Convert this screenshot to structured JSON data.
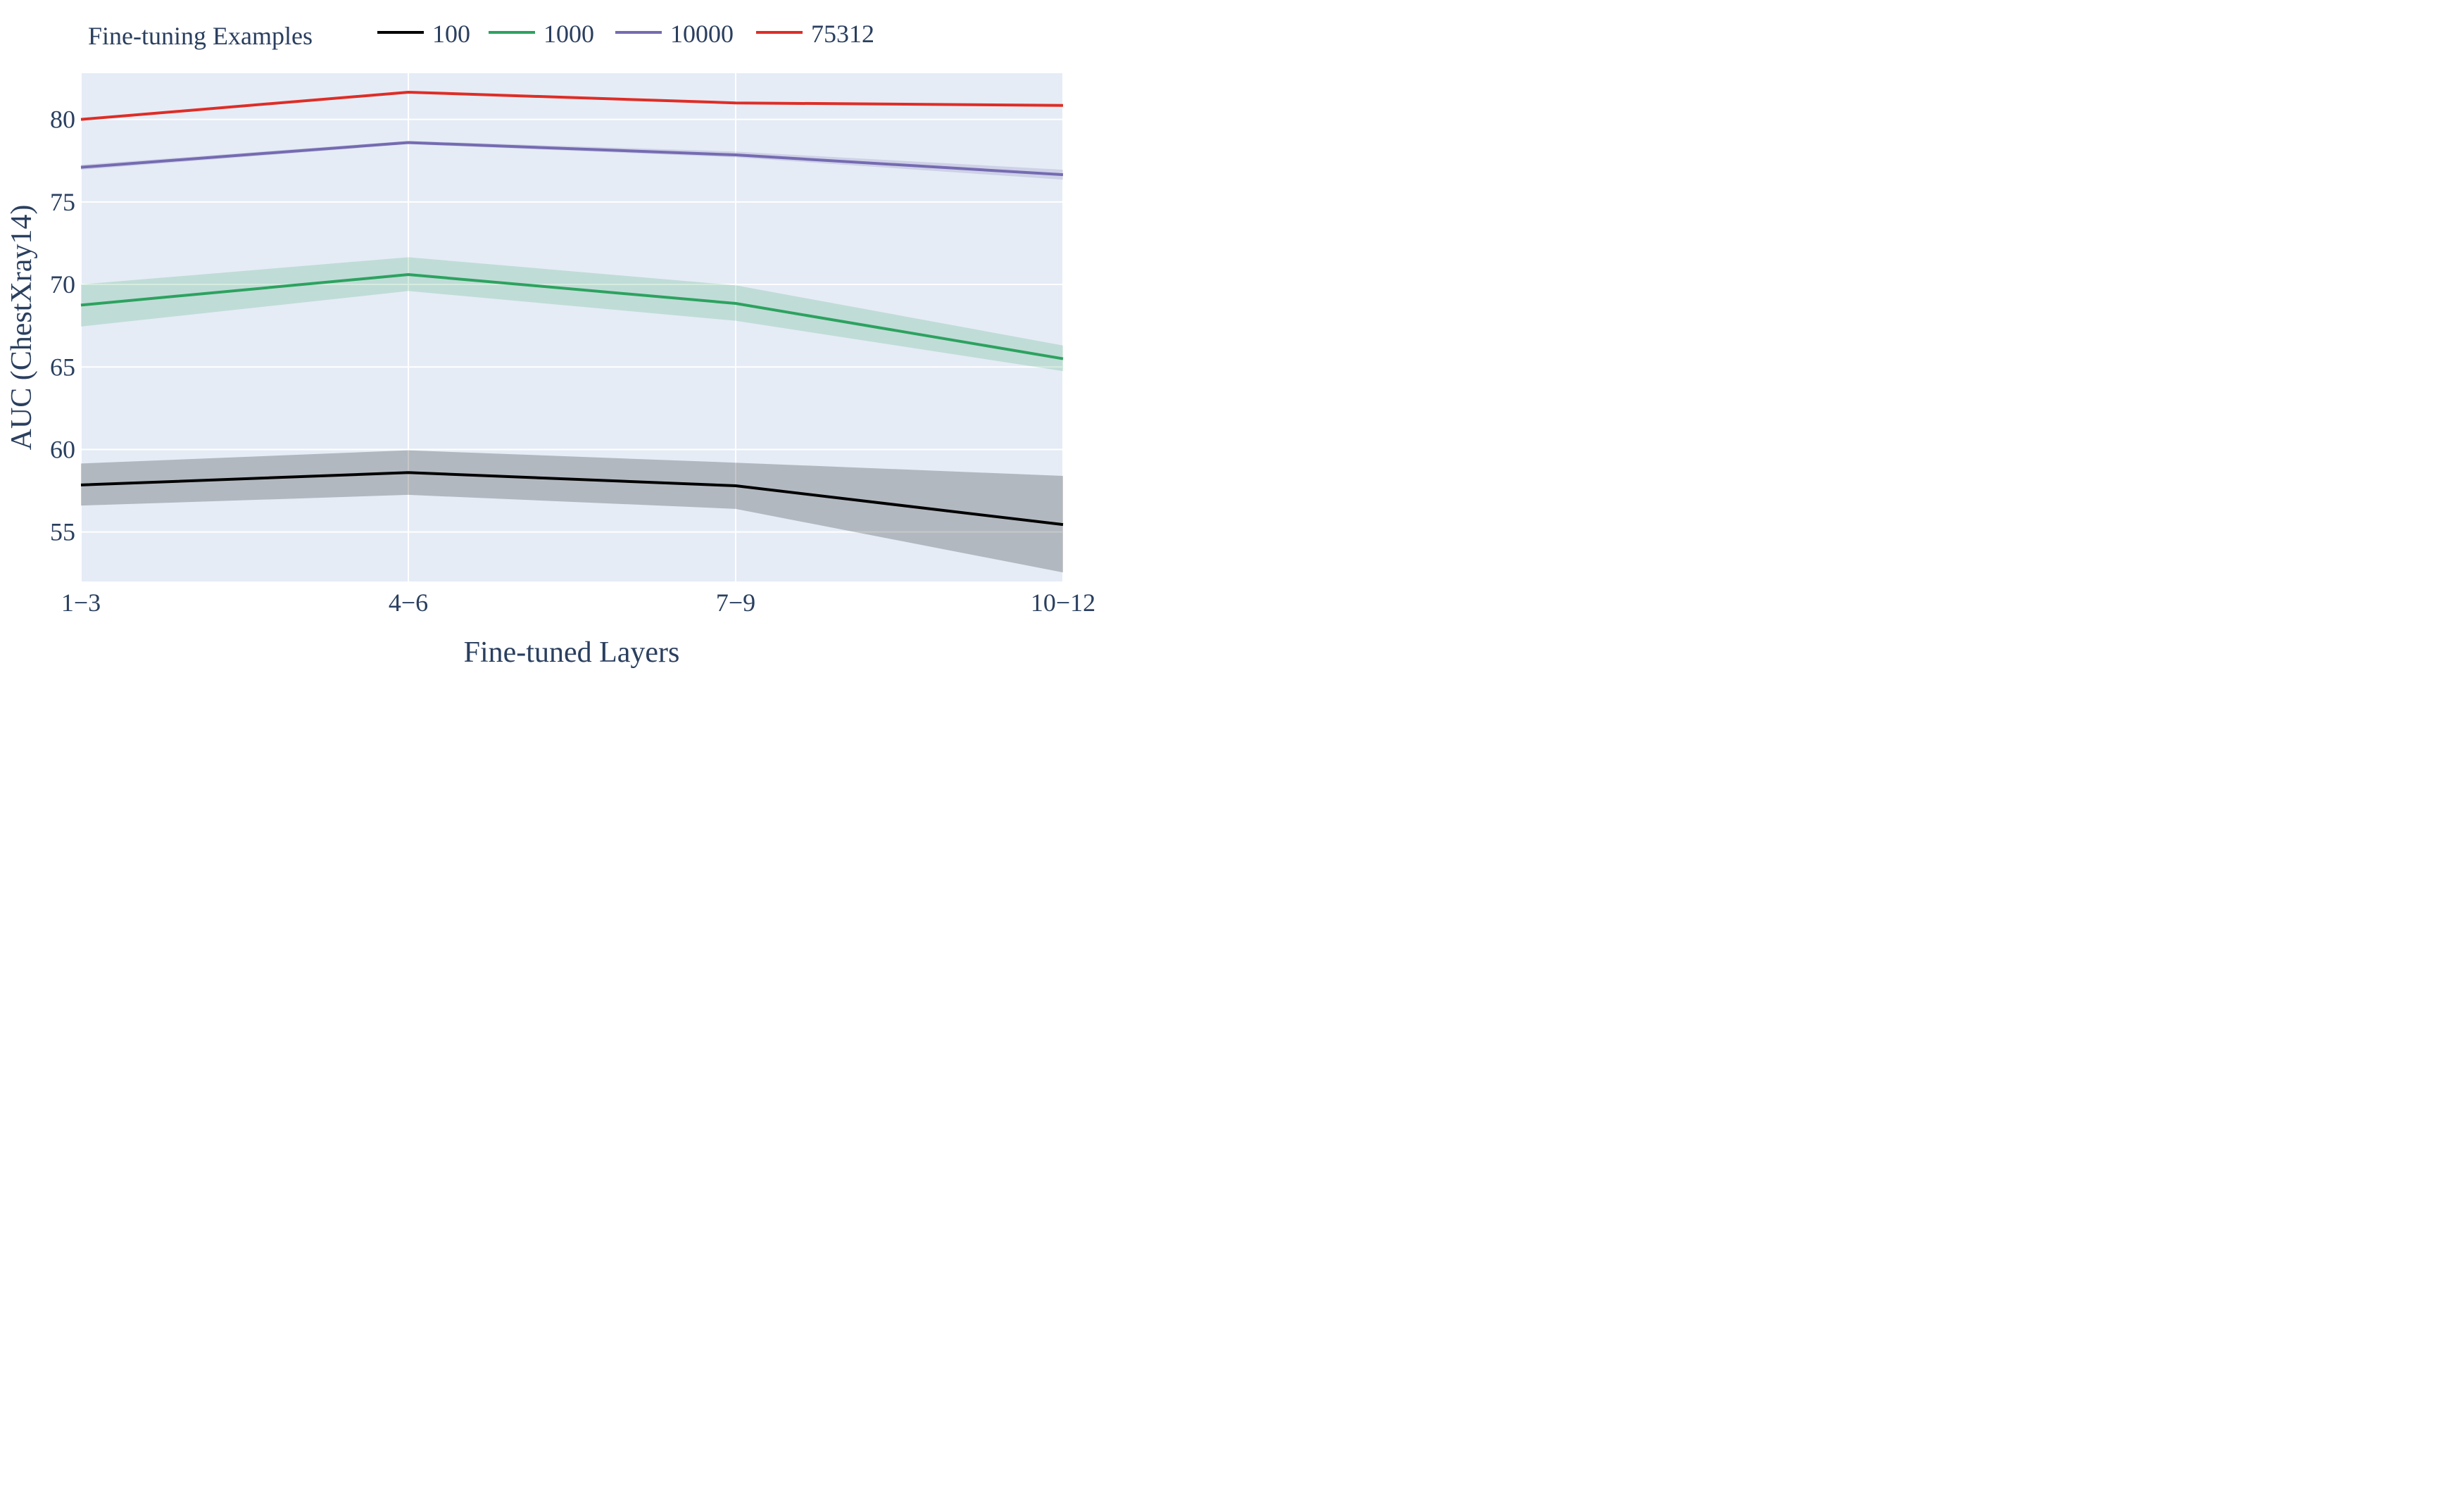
{
  "chart_data": {
    "type": "line",
    "title": "",
    "xlabel": "Fine-tuned Layers",
    "ylabel": "AUC (ChestXray14)",
    "categories": [
      "1−3",
      "4−6",
      "7−9",
      "10−12"
    ],
    "ylim": [
      52,
      82.8
    ],
    "yticks": [
      55,
      60,
      65,
      70,
      75,
      80
    ],
    "grid": true,
    "legend": {
      "title": "Fine-tuning Examples",
      "placement": "top"
    },
    "series": [
      {
        "name": "100",
        "color": "#000000",
        "values": [
          57.85,
          58.6,
          57.8,
          55.45
        ],
        "lower": [
          56.6,
          57.25,
          56.4,
          52.55
        ],
        "upper": [
          59.15,
          59.95,
          59.2,
          58.4
        ]
      },
      {
        "name": "1000",
        "color": "#2ca25f",
        "values": [
          68.75,
          70.6,
          68.85,
          65.5
        ],
        "lower": [
          67.45,
          69.6,
          67.8,
          64.75
        ],
        "upper": [
          70.0,
          71.65,
          69.95,
          66.3
        ]
      },
      {
        "name": "10000",
        "color": "#756bb1",
        "values": [
          77.1,
          78.6,
          77.85,
          76.65
        ],
        "lower": [
          76.95,
          78.5,
          77.7,
          76.35
        ],
        "upper": [
          77.25,
          78.7,
          78.05,
          76.95
        ]
      },
      {
        "name": "75312",
        "color": "#de2d26",
        "values": [
          80.0,
          81.65,
          81.0,
          80.85
        ],
        "lower": [
          79.95,
          81.6,
          80.95,
          80.8
        ],
        "upper": [
          80.05,
          81.7,
          81.05,
          80.9
        ]
      }
    ]
  }
}
